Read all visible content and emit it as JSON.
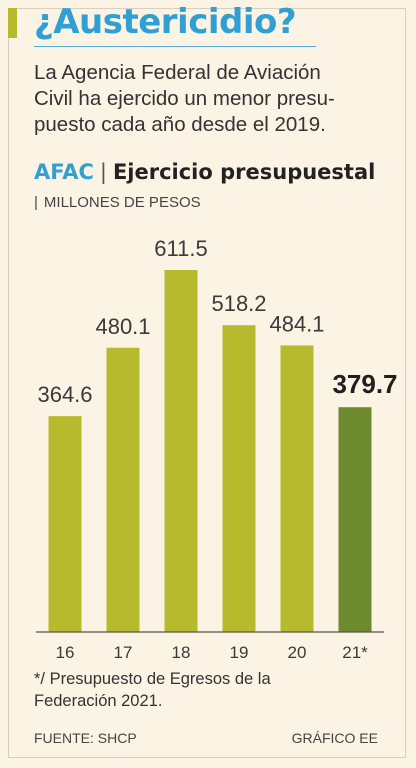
{
  "header": {
    "title": "¿Austericidio?",
    "intro_lines": [
      "La Agencia Federal de Aviación",
      "Civil ha ejercido un menor presu-",
      "puesto cada año desde el 2019."
    ]
  },
  "chart_heading": {
    "agency": "AFAC",
    "separator": "|",
    "subtitle": "Ejercicio presupuestal",
    "units_bar": "|",
    "units": "MILLONES DE PESOS"
  },
  "chart_data": {
    "type": "bar",
    "categories": [
      "16",
      "17",
      "18",
      "19",
      "20",
      "21*"
    ],
    "values": [
      364.6,
      480.1,
      611.5,
      518.2,
      484.1,
      379.7
    ],
    "value_labels": [
      "364.6",
      "480.1",
      "611.5",
      "518.2",
      "484.1",
      "379.7"
    ],
    "highlight_index": 5,
    "ylim": [
      0,
      611.5
    ],
    "grid": false,
    "colors": {
      "bar": "#b6ba2c",
      "highlight": "#6e8a2f",
      "axis": "#555555"
    }
  },
  "footnote": {
    "lines": [
      "*/ Presupuesto de Egresos de la",
      "Federación 2021."
    ]
  },
  "source": "FUENTE: SHCP",
  "credit": "GRÁFICO EE"
}
